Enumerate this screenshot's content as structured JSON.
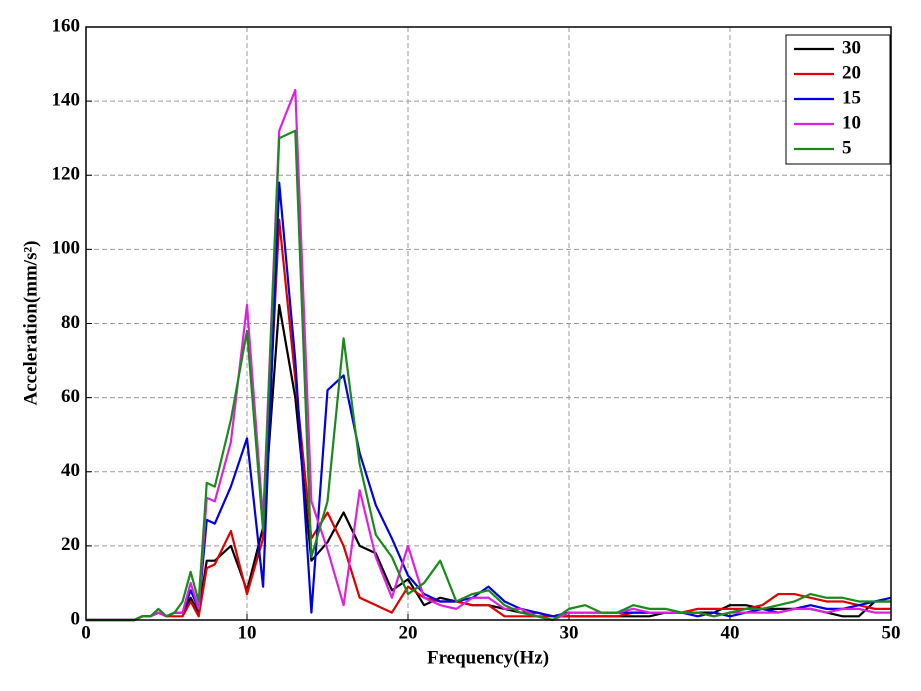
{
  "chart_data": {
    "type": "line",
    "x_label": "Frequency(Hz)",
    "y_label": "Acceleration(mm/s²)",
    "x": [
      0,
      1,
      2,
      3,
      3.5,
      4,
      4.5,
      5,
      5.5,
      6,
      6.5,
      7,
      7.5,
      8,
      9,
      10,
      11,
      12,
      13,
      14,
      15,
      16,
      17,
      18,
      19,
      20,
      21,
      22,
      23,
      24,
      25,
      26,
      27,
      28,
      29,
      30,
      31,
      32,
      33,
      34,
      35,
      36,
      37,
      38,
      39,
      40,
      41,
      42,
      43,
      44,
      45,
      46,
      47,
      48,
      49,
      50
    ],
    "series": [
      {
        "name": "30",
        "color": "#000000",
        "values": [
          0,
          0,
          0,
          0,
          1,
          1,
          2,
          1,
          2,
          2,
          6,
          2,
          16,
          16,
          20,
          8,
          25,
          85,
          60,
          16,
          21,
          29,
          20,
          18,
          8,
          11,
          4,
          6,
          5,
          4,
          4,
          3,
          2,
          2,
          1,
          1,
          1,
          1,
          1,
          1,
          1,
          2,
          2,
          2,
          2,
          4,
          4,
          3,
          3,
          3,
          3,
          2,
          1,
          1,
          5,
          5
        ]
      },
      {
        "name": "20",
        "color": "#e00000",
        "values": [
          0,
          0,
          0,
          0,
          1,
          1,
          2,
          1,
          1,
          1,
          5,
          1,
          14,
          15,
          24,
          7,
          22,
          108,
          65,
          22,
          29,
          20,
          6,
          4,
          2,
          9,
          6,
          5,
          5,
          4,
          4,
          1,
          1,
          1,
          1,
          1,
          1,
          1,
          1,
          2,
          2,
          2,
          2,
          3,
          3,
          3,
          3,
          4,
          7,
          7,
          6,
          5,
          5,
          4,
          3,
          3
        ]
      },
      {
        "name": "15",
        "color": "#0000e0",
        "values": [
          0,
          0,
          0,
          0,
          1,
          1,
          2,
          1,
          2,
          2,
          8,
          3,
          27,
          26,
          36,
          49,
          9,
          118,
          70,
          2,
          62,
          66,
          45,
          31,
          22,
          12,
          7,
          5,
          5,
          6,
          9,
          5,
          3,
          2,
          1,
          2,
          2,
          2,
          2,
          2,
          2,
          2,
          2,
          1,
          2,
          1,
          2,
          3,
          2,
          3,
          4,
          3,
          3,
          4,
          5,
          6
        ]
      },
      {
        "name": "10",
        "color": "#e020e0",
        "values": [
          0,
          0,
          0,
          0,
          1,
          1,
          2,
          1,
          2,
          2,
          10,
          3,
          33,
          32,
          48,
          85,
          27,
          132,
          143,
          32,
          19,
          4,
          35,
          17,
          6,
          20,
          6,
          4,
          3,
          6,
          6,
          3,
          3,
          1,
          0,
          2,
          2,
          2,
          2,
          3,
          2,
          2,
          2,
          2,
          1,
          2,
          2,
          2,
          2,
          3,
          3,
          2,
          3,
          3,
          2,
          2
        ]
      },
      {
        "name": "5",
        "color": "#1a8a1a",
        "values": [
          0,
          0,
          0,
          0,
          1,
          1,
          3,
          1,
          2,
          5,
          13,
          5,
          37,
          36,
          54,
          78,
          24,
          130,
          132,
          17,
          32,
          76,
          42,
          23,
          17,
          7,
          10,
          16,
          5,
          7,
          8,
          4,
          2,
          1,
          0,
          3,
          4,
          2,
          2,
          4,
          3,
          3,
          2,
          2,
          1,
          2,
          3,
          3,
          4,
          5,
          7,
          6,
          6,
          5,
          5,
          5
        ]
      }
    ],
    "xlim": [
      0,
      50
    ],
    "xticks": [
      0,
      10,
      20,
      30,
      40,
      50
    ],
    "ylim": [
      0,
      160
    ],
    "yticks": [
      0,
      20,
      40,
      60,
      80,
      100,
      120,
      140,
      160
    ],
    "grid": true,
    "legend": "upper right"
  }
}
